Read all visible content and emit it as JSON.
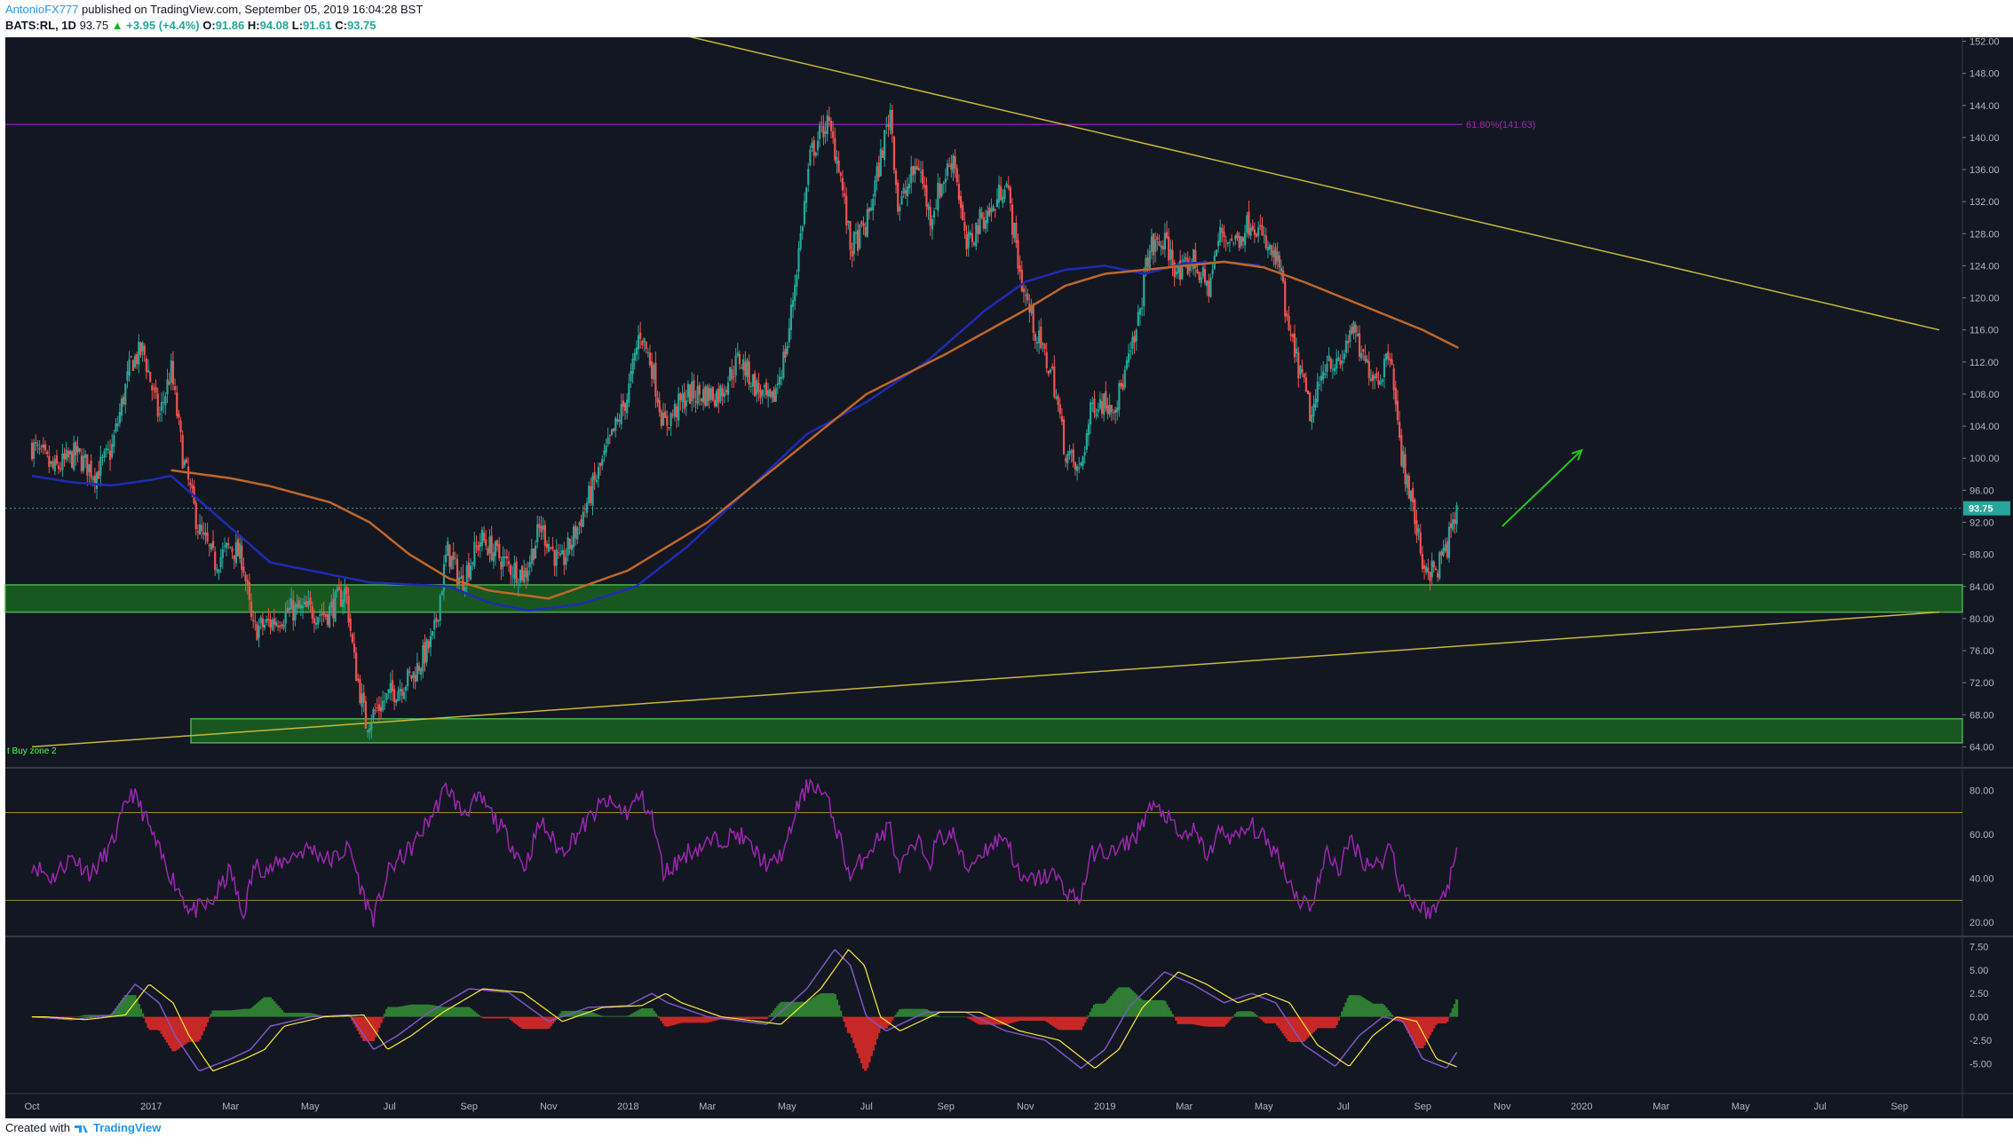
{
  "header": {
    "author": "AntonioFX777",
    "published": "published on TradingView.com, September 05, 2019 16:04:28 BST",
    "symbol": "BATS:RL, 1D",
    "last": "93.75",
    "change": "+3.95 (+4.4%)",
    "open_label": "O:",
    "open": "91.86",
    "high_label": "H:",
    "high": "94.08",
    "low_label": "L:",
    "low": "91.61",
    "close_label": "C:",
    "close": "93.75"
  },
  "footer": {
    "created_with": "Created with",
    "brand": "TradingView"
  },
  "colors": {
    "background": "#131722",
    "up": "#26a69a",
    "down": "#ef5350",
    "ma_short": "#1a237e",
    "ma_long": "#c0672a",
    "rsi": "#9c27b0",
    "macd": "#7e57c2",
    "signal": "#ffeb3b",
    "zone": "#1b5e20",
    "zone_border": "#4caf50",
    "trendline": "#c8b93a",
    "fib": "#7b1fa2",
    "arrow": "#27c21d"
  },
  "chart_data": [
    {
      "type": "candlestick",
      "title": "BATS:RL, 1D",
      "x_ticks": [
        "Oct",
        "2017",
        "Mar",
        "May",
        "Jul",
        "Sep",
        "Nov",
        "2018",
        "Mar",
        "May",
        "Jul",
        "Sep",
        "Nov",
        "2019",
        "Mar",
        "May",
        "Jul",
        "Sep",
        "Nov",
        "2020",
        "Mar",
        "May",
        "Jul",
        "Sep"
      ],
      "x_tick_months": [
        0,
        3,
        5,
        7,
        9,
        11,
        13,
        15,
        17,
        19,
        21,
        23,
        25,
        27,
        29,
        31,
        33,
        35,
        37,
        39,
        41,
        43,
        45,
        47
      ],
      "x_start": "2016-09",
      "x_end": "2020-10",
      "y_ticks": [
        "152.00",
        "148.00",
        "144.00",
        "140.00",
        "136.00",
        "132.00",
        "128.00",
        "124.00",
        "120.00",
        "116.00",
        "112.00",
        "108.00",
        "104.00",
        "100.00",
        "96.00",
        "92.00",
        "88.00",
        "84.00",
        "80.00",
        "76.00",
        "72.00",
        "68.00",
        "64.00"
      ],
      "ylim": [
        61.5,
        152.5
      ],
      "price_label": "93.75",
      "price": 93.75,
      "anchors": [
        [
          0.0,
          101.5
        ],
        [
          0.55,
          98.5
        ],
        [
          1.1,
          100.5
        ],
        [
          1.6,
          98.0
        ],
        [
          2.0,
          101.0
        ],
        [
          2.5,
          112.0
        ],
        [
          2.8,
          113.5
        ],
        [
          3.2,
          105.0
        ],
        [
          3.5,
          111.0
        ],
        [
          3.8,
          100.0
        ],
        [
          4.2,
          91.0
        ],
        [
          4.6,
          87.0
        ],
        [
          5.0,
          89.0
        ],
        [
          5.3,
          87.5
        ],
        [
          5.55,
          78.5
        ],
        [
          6.0,
          79.5
        ],
        [
          6.5,
          81.0
        ],
        [
          7.0,
          81.0
        ],
        [
          7.4,
          80.5
        ],
        [
          7.9,
          83.5
        ],
        [
          8.1,
          75.0
        ],
        [
          8.4,
          67.0
        ],
        [
          9.0,
          70.5
        ],
        [
          9.6,
          73.0
        ],
        [
          10.1,
          77.5
        ],
        [
          10.45,
          88.5
        ],
        [
          10.8,
          84.5
        ],
        [
          11.3,
          90.0
        ],
        [
          12.0,
          86.5
        ],
        [
          12.4,
          85.5
        ],
        [
          12.8,
          91.5
        ],
        [
          13.3,
          86.5
        ],
        [
          13.7,
          91.0
        ],
        [
          14.4,
          100.0
        ],
        [
          15.0,
          108.0
        ],
        [
          15.3,
          116.0
        ],
        [
          15.6,
          111.5
        ],
        [
          15.9,
          104.0
        ],
        [
          16.5,
          108.0
        ],
        [
          17.3,
          108.0
        ],
        [
          17.8,
          112.5
        ],
        [
          18.2,
          109.0
        ],
        [
          18.6,
          106.5
        ],
        [
          19.0,
          114.0
        ],
        [
          19.2,
          122.0
        ],
        [
          19.6,
          138.0
        ],
        [
          20.0,
          142.0
        ],
        [
          20.3,
          137.0
        ],
        [
          20.6,
          126.0
        ],
        [
          21.0,
          129.0
        ],
        [
          21.3,
          136.0
        ],
        [
          21.6,
          143.5
        ],
        [
          21.8,
          131.0
        ],
        [
          22.3,
          137.0
        ],
        [
          22.6,
          130.0
        ],
        [
          22.8,
          133.0
        ],
        [
          23.2,
          138.0
        ],
        [
          23.5,
          126.0
        ],
        [
          23.9,
          130.0
        ],
        [
          24.2,
          131.0
        ],
        [
          24.5,
          135.0
        ],
        [
          24.9,
          122.0
        ],
        [
          25.3,
          115.0
        ],
        [
          25.7,
          110.0
        ],
        [
          26.0,
          101.0
        ],
        [
          26.35,
          98.0
        ],
        [
          26.7,
          107.0
        ],
        [
          27.3,
          107.0
        ],
        [
          27.8,
          115.5
        ],
        [
          28.1,
          126.0
        ],
        [
          28.5,
          127.0
        ],
        [
          28.9,
          122.5
        ],
        [
          29.2,
          125.0
        ],
        [
          29.6,
          121.0
        ],
        [
          29.9,
          128.0
        ],
        [
          30.3,
          127.0
        ],
        [
          30.7,
          130.0
        ],
        [
          31.1,
          126.0
        ],
        [
          31.4,
          124.0
        ],
        [
          31.6,
          116.0
        ],
        [
          31.9,
          111.0
        ],
        [
          32.2,
          105.0
        ],
        [
          32.6,
          113.0
        ],
        [
          32.9,
          111.0
        ],
        [
          33.2,
          116.5
        ],
        [
          33.5,
          112.0
        ],
        [
          33.9,
          110.0
        ],
        [
          34.2,
          114.0
        ],
        [
          34.4,
          102.0
        ],
        [
          34.7,
          95.0
        ],
        [
          35.0,
          87.0
        ],
        [
          35.3,
          85.5
        ],
        [
          35.6,
          89.0
        ],
        [
          35.9,
          93.75
        ]
      ],
      "ma_short_anchors": [
        [
          0.0,
          97.8
        ],
        [
          1.0,
          97.0
        ],
        [
          2.0,
          96.6
        ],
        [
          3.0,
          97.3
        ],
        [
          3.5,
          97.8
        ],
        [
          6.0,
          87.0
        ],
        [
          8.5,
          84.5
        ],
        [
          10.5,
          84.0
        ],
        [
          11.5,
          82.0
        ],
        [
          12.5,
          81.0
        ],
        [
          13.8,
          81.8
        ],
        [
          15.2,
          84.0
        ],
        [
          16.5,
          89.0
        ],
        [
          18.0,
          96.0
        ],
        [
          19.5,
          103.0
        ],
        [
          21.0,
          107.0
        ],
        [
          22.5,
          112.0
        ],
        [
          24.0,
          118.5
        ],
        [
          25.0,
          122.0
        ],
        [
          26.0,
          123.5
        ],
        [
          27.0,
          124.0
        ],
        [
          28.0,
          123.0
        ],
        [
          29.0,
          124.3
        ],
        [
          30.0,
          124.5
        ],
        [
          31.0,
          124.0
        ]
      ],
      "ma_long_anchors": [
        [
          3.5,
          98.5
        ],
        [
          5.0,
          97.5
        ],
        [
          6.0,
          96.5
        ],
        [
          7.5,
          94.5
        ],
        [
          8.5,
          92.0
        ],
        [
          9.5,
          88.0
        ],
        [
          10.5,
          85.0
        ],
        [
          11.5,
          83.5
        ],
        [
          13.0,
          82.5
        ],
        [
          15.0,
          86.0
        ],
        [
          17.0,
          92.0
        ],
        [
          19.0,
          100.0
        ],
        [
          21.0,
          108.0
        ],
        [
          23.0,
          113.0
        ],
        [
          25.0,
          118.5
        ],
        [
          26.0,
          121.5
        ],
        [
          27.0,
          123.0
        ],
        [
          28.0,
          123.5
        ],
        [
          29.0,
          124.0
        ],
        [
          30.0,
          124.5
        ],
        [
          31.0,
          123.8
        ],
        [
          32.0,
          122.0
        ],
        [
          33.0,
          120.0
        ],
        [
          34.0,
          118.0
        ],
        [
          35.0,
          116.0
        ],
        [
          36.0,
          113.5
        ]
      ],
      "zones": [
        [
          80.8,
          84.2
        ],
        [
          64.5,
          67.5
        ]
      ],
      "zone_label": "t Buy zone 2",
      "fib_level": 141.63,
      "fib_label": "61.80%(141.63)",
      "trend_upper": [
        [
          13.6,
          156.0
        ],
        [
          48.0,
          116.0
        ]
      ],
      "trend_lower": [
        [
          0.0,
          64.0
        ],
        [
          48.0,
          80.8
        ]
      ],
      "arrow": [
        [
          37.0,
          91.5
        ],
        [
          39.0,
          101.0
        ]
      ]
    },
    {
      "type": "line",
      "name": "RSI",
      "y_ticks": [
        "80.00",
        "60.00",
        "40.00",
        "20.00"
      ],
      "ylim": [
        14,
        90
      ],
      "bands": [
        70,
        30
      ],
      "anchors": [
        [
          0.0,
          47
        ],
        [
          0.5,
          40
        ],
        [
          1.0,
          50
        ],
        [
          1.5,
          42
        ],
        [
          2.0,
          55
        ],
        [
          2.5,
          80
        ],
        [
          2.8,
          70
        ],
        [
          3.2,
          52
        ],
        [
          3.6,
          38
        ],
        [
          4.0,
          25
        ],
        [
          4.5,
          28
        ],
        [
          5.0,
          44
        ],
        [
          5.3,
          22
        ],
        [
          5.6,
          46
        ],
        [
          6.0,
          44
        ],
        [
          6.5,
          50
        ],
        [
          7.0,
          54
        ],
        [
          7.5,
          48
        ],
        [
          8.0,
          54
        ],
        [
          8.3,
          34
        ],
        [
          8.6,
          22
        ],
        [
          9.0,
          44
        ],
        [
          9.6,
          55
        ],
        [
          10.1,
          70
        ],
        [
          10.45,
          82
        ],
        [
          10.8,
          70
        ],
        [
          11.3,
          76
        ],
        [
          12.0,
          58
        ],
        [
          12.4,
          45
        ],
        [
          12.8,
          66
        ],
        [
          13.3,
          52
        ],
        [
          13.7,
          60
        ],
        [
          14.4,
          75
        ],
        [
          15.0,
          70
        ],
        [
          15.3,
          78
        ],
        [
          15.6,
          68
        ],
        [
          15.9,
          42
        ],
        [
          16.5,
          52
        ],
        [
          17.3,
          58
        ],
        [
          17.8,
          60
        ],
        [
          18.2,
          52
        ],
        [
          18.6,
          45
        ],
        [
          19.0,
          55
        ],
        [
          19.2,
          70
        ],
        [
          19.6,
          85
        ],
        [
          20.0,
          76
        ],
        [
          20.3,
          60
        ],
        [
          20.6,
          40
        ],
        [
          21.0,
          52
        ],
        [
          21.3,
          58
        ],
        [
          21.6,
          64
        ],
        [
          21.8,
          44
        ],
        [
          22.3,
          56
        ],
        [
          22.6,
          48
        ],
        [
          22.8,
          58
        ],
        [
          23.2,
          60
        ],
        [
          23.5,
          44
        ],
        [
          23.9,
          52
        ],
        [
          24.2,
          56
        ],
        [
          24.5,
          60
        ],
        [
          24.9,
          38
        ],
        [
          25.3,
          40
        ],
        [
          25.7,
          42
        ],
        [
          26.0,
          35
        ],
        [
          26.35,
          30
        ],
        [
          26.7,
          52
        ],
        [
          27.3,
          52
        ],
        [
          27.8,
          60
        ],
        [
          28.1,
          72
        ],
        [
          28.5,
          70
        ],
        [
          28.9,
          58
        ],
        [
          29.2,
          62
        ],
        [
          29.6,
          50
        ],
        [
          29.9,
          62
        ],
        [
          30.3,
          58
        ],
        [
          30.7,
          64
        ],
        [
          31.1,
          56
        ],
        [
          31.4,
          50
        ],
        [
          31.6,
          40
        ],
        [
          31.9,
          30
        ],
        [
          32.2,
          28
        ],
        [
          32.6,
          52
        ],
        [
          32.9,
          44
        ],
        [
          33.2,
          58
        ],
        [
          33.5,
          48
        ],
        [
          33.9,
          46
        ],
        [
          34.2,
          56
        ],
        [
          34.4,
          38
        ],
        [
          34.7,
          30
        ],
        [
          35.0,
          26
        ],
        [
          35.3,
          25
        ],
        [
          35.6,
          36
        ],
        [
          35.9,
          53
        ]
      ]
    },
    {
      "type": "line",
      "name": "MACD",
      "y_ticks": [
        "7.50",
        "5.00",
        "2.50",
        "0.00",
        "-2.50",
        "-5.00"
      ],
      "ylim": [
        -8.2,
        8.5
      ],
      "macd_anchors": [
        [
          0.0,
          0.0
        ],
        [
          1.0,
          -0.3
        ],
        [
          2.0,
          0.2
        ],
        [
          2.6,
          3.5
        ],
        [
          3.2,
          1.5
        ],
        [
          3.6,
          -2.0
        ],
        [
          4.2,
          -5.8
        ],
        [
          5.0,
          -4.5
        ],
        [
          5.5,
          -3.5
        ],
        [
          6.0,
          -1.0
        ],
        [
          7.0,
          0.0
        ],
        [
          8.0,
          0.2
        ],
        [
          8.6,
          -3.5
        ],
        [
          9.2,
          -2.0
        ],
        [
          10.0,
          0.5
        ],
        [
          11.0,
          3.0
        ],
        [
          12.0,
          2.6
        ],
        [
          13.0,
          -0.5
        ],
        [
          14.0,
          1.0
        ],
        [
          15.0,
          1.2
        ],
        [
          15.6,
          2.5
        ],
        [
          16.0,
          1.5
        ],
        [
          17.0,
          0.0
        ],
        [
          18.5,
          -0.8
        ],
        [
          19.5,
          3.0
        ],
        [
          20.2,
          7.2
        ],
        [
          20.6,
          5.5
        ],
        [
          21.0,
          0.0
        ],
        [
          21.5,
          -1.5
        ],
        [
          22.5,
          0.5
        ],
        [
          23.5,
          0.5
        ],
        [
          24.5,
          -1.5
        ],
        [
          25.5,
          -2.5
        ],
        [
          26.4,
          -5.5
        ],
        [
          27.0,
          -3.5
        ],
        [
          27.6,
          1.0
        ],
        [
          28.5,
          4.8
        ],
        [
          29.2,
          3.5
        ],
        [
          30.0,
          1.5
        ],
        [
          30.7,
          2.5
        ],
        [
          31.3,
          1.5
        ],
        [
          32.0,
          -3.0
        ],
        [
          32.8,
          -5.3
        ],
        [
          33.4,
          -2.0
        ],
        [
          34.0,
          0.0
        ],
        [
          34.5,
          -0.5
        ],
        [
          35.0,
          -4.5
        ],
        [
          35.6,
          -5.5
        ],
        [
          35.9,
          -3.5
        ]
      ],
      "signal_offset_months": 0.35
    }
  ]
}
